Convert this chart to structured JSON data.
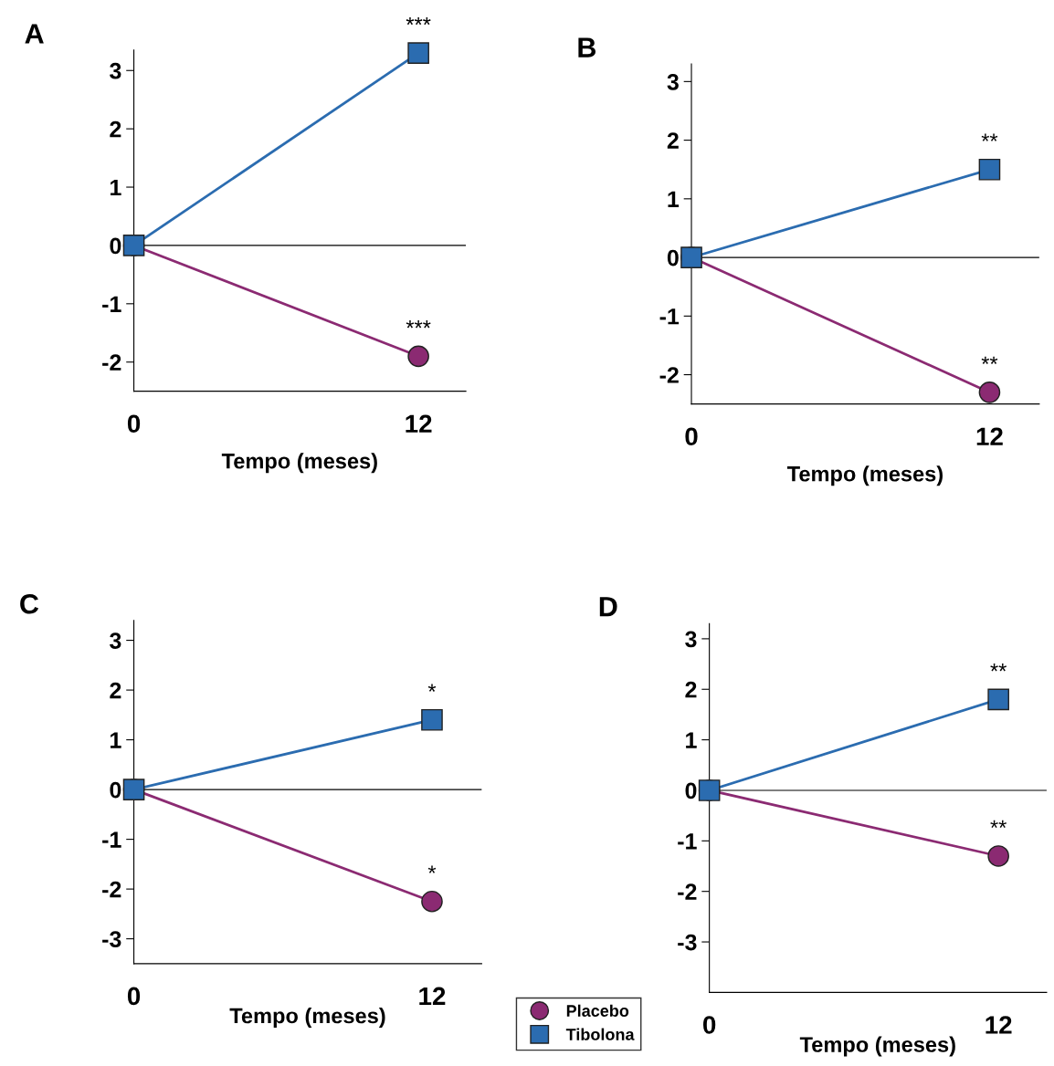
{
  "chart_data": [
    {
      "type": "line",
      "title": "A",
      "xlabel": "Tempo (meses)",
      "categories": [
        "0",
        "12"
      ],
      "ylim": [
        -2.5,
        3.35
      ],
      "yticks": [
        -2,
        -1,
        0,
        1,
        2,
        3
      ],
      "grid": false,
      "legend": false,
      "series": [
        {
          "color": "#8b2a72",
          "marker": "circle",
          "values": [
            0,
            -1.9
          ]
        },
        {
          "color": "#2b6cb0",
          "marker": "square",
          "values": [
            0,
            3.3
          ]
        }
      ],
      "ref_lines": [
        {
          "axis": "y",
          "value": 0,
          "color": "#000000"
        }
      ],
      "annotations": [
        {
          "text": "***",
          "x": "12",
          "y": 3.3
        },
        {
          "text": "***",
          "x": "12",
          "y": -1.9
        }
      ]
    },
    {
      "type": "line",
      "title": "B",
      "xlabel": "Tempo (meses)",
      "categories": [
        "0",
        "12"
      ],
      "ylim": [
        -2.5,
        3.3
      ],
      "yticks": [
        -2,
        -1,
        0,
        1,
        2,
        3
      ],
      "grid": false,
      "legend": false,
      "series": [
        {
          "color": "#8b2a72",
          "marker": "circle",
          "values": [
            0,
            -2.3
          ]
        },
        {
          "color": "#2b6cb0",
          "marker": "square",
          "values": [
            0,
            1.5
          ]
        }
      ],
      "ref_lines": [
        {
          "axis": "y",
          "value": 0,
          "color": "#000000"
        }
      ],
      "annotations": [
        {
          "text": "**",
          "x": "12",
          "y": 1.5
        },
        {
          "text": "**",
          "x": "12",
          "y": -2.3
        }
      ]
    },
    {
      "type": "line",
      "title": "C",
      "xlabel": "Tempo (meses)",
      "categories": [
        "0",
        "12"
      ],
      "ylim": [
        -3.5,
        3.4
      ],
      "yticks": [
        -3,
        -2,
        -1,
        0,
        1,
        2,
        3
      ],
      "grid": false,
      "legend": "bottom right",
      "series": [
        {
          "name": "Placebo",
          "color": "#8b2a72",
          "marker": "circle",
          "values": [
            0,
            -2.25
          ]
        },
        {
          "name": "Tibolona",
          "color": "#2b6cb0",
          "marker": "square",
          "values": [
            0,
            1.4
          ]
        }
      ],
      "ref_lines": [
        {
          "axis": "y",
          "value": 0,
          "color": "#000000"
        }
      ],
      "annotations": [
        {
          "text": "*",
          "x": "12",
          "y": 1.4
        },
        {
          "text": "*",
          "x": "12",
          "y": -2.25
        }
      ]
    },
    {
      "type": "line",
      "title": "D",
      "xlabel": "Tempo (meses)",
      "categories": [
        "0",
        "12"
      ],
      "ylim": [
        -4,
        3.3
      ],
      "yticks": [
        -3,
        -2,
        -1,
        0,
        1,
        2,
        3
      ],
      "grid": false,
      "legend": false,
      "series": [
        {
          "color": "#8b2a72",
          "marker": "circle",
          "values": [
            0,
            -1.3
          ]
        },
        {
          "color": "#2b6cb0",
          "marker": "square",
          "values": [
            0,
            1.8
          ]
        }
      ],
      "ref_lines": [
        {
          "axis": "y",
          "value": 0,
          "color": "#000000"
        }
      ],
      "annotations": [
        {
          "text": "**",
          "x": "12",
          "y": 1.8
        },
        {
          "text": "**",
          "x": "12",
          "y": -1.3
        }
      ]
    }
  ]
}
